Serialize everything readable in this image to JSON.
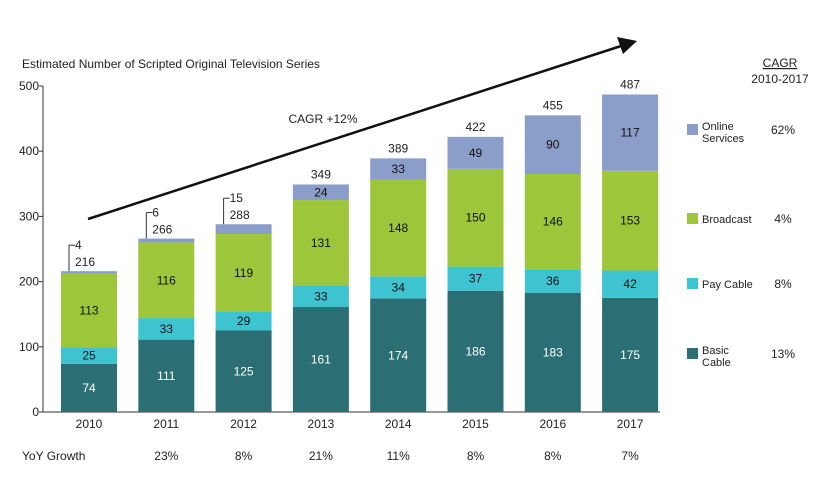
{
  "chart_data": {
    "type": "bar",
    "stacked": true,
    "title": "Estimated Number of Scripted Original Television Series",
    "categories": [
      "2010",
      "2011",
      "2012",
      "2013",
      "2014",
      "2015",
      "2016",
      "2017"
    ],
    "series": [
      {
        "name": "Basic Cable",
        "color": "#2b6f74",
        "values": [
          74,
          111,
          125,
          161,
          174,
          186,
          183,
          175
        ],
        "cagr": "13%"
      },
      {
        "name": "Pay Cable",
        "color": "#3ec3d0",
        "values": [
          25,
          33,
          29,
          33,
          34,
          37,
          36,
          42
        ],
        "cagr": "8%"
      },
      {
        "name": "Broadcast",
        "color": "#9dc63b",
        "values": [
          113,
          116,
          119,
          131,
          148,
          150,
          146,
          153
        ],
        "cagr": "4%"
      },
      {
        "name": "Online Services",
        "color": "#8b9ec9",
        "values": [
          4,
          6,
          15,
          24,
          33,
          49,
          90,
          117
        ],
        "cagr": "62%"
      }
    ],
    "totals": [
      216,
      266,
      288,
      349,
      389,
      422,
      455,
      487
    ],
    "ylim": [
      0,
      500
    ],
    "yticks": [
      0,
      100,
      200,
      300,
      400,
      500
    ],
    "annotation": "CAGR +12%",
    "cagr_header": "CAGR",
    "cagr_period": "2010-2017",
    "yoy_label": "YoY Growth",
    "yoy_growth": [
      "",
      "23%",
      "8%",
      "21%",
      "11%",
      "8%",
      "8%",
      "7%"
    ],
    "legend_lines": {
      "Online Services": [
        "Online",
        "Services"
      ],
      "Broadcast": [
        "Broadcast"
      ],
      "Pay Cable": [
        "Pay Cable"
      ],
      "Basic Cable": [
        "Basic",
        "Cable"
      ]
    },
    "grid": false,
    "legend_position": "right"
  }
}
